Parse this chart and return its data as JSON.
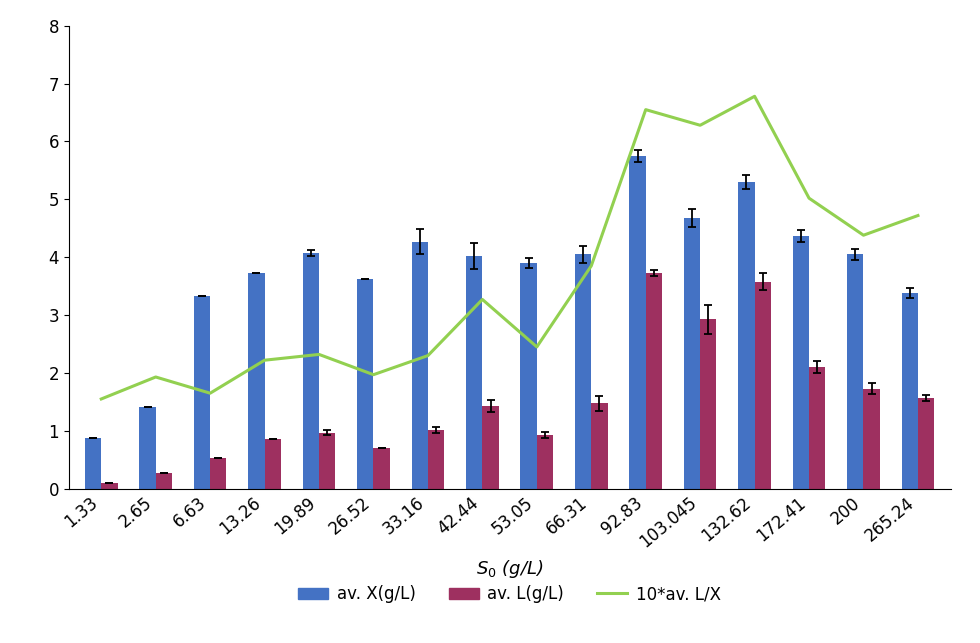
{
  "categories": [
    "1.33",
    "2.65",
    "6.63",
    "13.26",
    "19.89",
    "26.52",
    "33.16",
    "42.44",
    "53.05",
    "66.31",
    "92.83",
    "103.045",
    "132.62",
    "172.41",
    "200",
    "265.24"
  ],
  "X_values": [
    0.87,
    1.42,
    3.33,
    3.72,
    4.07,
    3.63,
    4.27,
    4.02,
    3.9,
    4.05,
    5.75,
    4.68,
    5.3,
    4.37,
    4.05,
    3.38
  ],
  "X_errors": [
    0.0,
    0.0,
    0.0,
    0.0,
    0.05,
    0.0,
    0.22,
    0.22,
    0.08,
    0.15,
    0.1,
    0.15,
    0.12,
    0.1,
    0.1,
    0.08
  ],
  "L_values": [
    0.1,
    0.27,
    0.53,
    0.85,
    0.97,
    0.7,
    1.02,
    1.43,
    0.93,
    1.48,
    3.73,
    2.93,
    3.58,
    2.1,
    1.73,
    1.57
  ],
  "L_errors": [
    0.0,
    0.0,
    0.0,
    0.0,
    0.05,
    0.0,
    0.05,
    0.1,
    0.05,
    0.13,
    0.05,
    0.25,
    0.15,
    0.1,
    0.1,
    0.05
  ],
  "line_values": [
    1.55,
    1.93,
    1.65,
    2.22,
    2.32,
    1.97,
    2.3,
    3.27,
    2.45,
    3.85,
    6.55,
    6.28,
    6.78,
    5.02,
    4.38,
    4.72
  ],
  "blue_color": "#4472C4",
  "red_color": "#9E3060",
  "green_color": "#92D050",
  "xlabel": "S$_0$ (g/L)",
  "ylim": [
    0,
    8
  ],
  "yticks": [
    0,
    1,
    2,
    3,
    4,
    5,
    6,
    7,
    8
  ],
  "legend_labels": [
    "av. X(g/L)",
    "av. L(g/L)",
    "10*av. L/X"
  ],
  "bar_width": 0.6,
  "axis_fontsize": 13,
  "legend_fontsize": 12,
  "tick_fontsize": 12
}
